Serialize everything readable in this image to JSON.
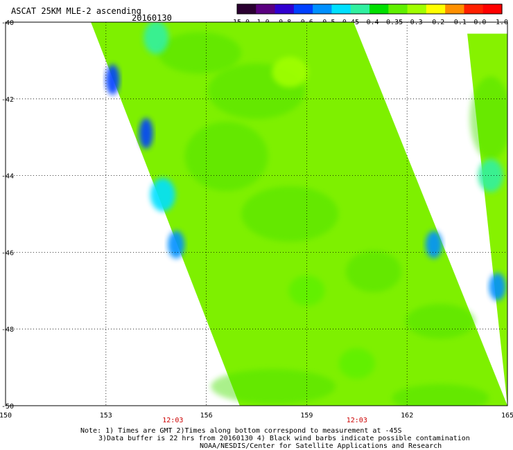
{
  "chart_data": {
    "type": "heatmap",
    "title": "ASCAT 25KM MLE-2 ascending",
    "date": "20160130",
    "colorbar": {
      "labels": [
        "-15.0",
        "-1.0",
        "-0.8",
        "-0.6",
        "-0.5",
        "-0.45",
        "-0.4",
        "-0.35",
        "-0.3",
        "-0.2",
        "-0.1",
        "0.0",
        "1.0"
      ],
      "colors": [
        "#2a0030",
        "#5a0080",
        "#3000d0",
        "#0040ff",
        "#0090ff",
        "#00e0ff",
        "#30f0a0",
        "#00e000",
        "#60f000",
        "#a0ff00",
        "#ffff00",
        "#ff9000",
        "#ff2000",
        "#ff0000"
      ]
    },
    "x_ticks": [
      "150",
      "153",
      "156",
      "159",
      "162",
      "165"
    ],
    "y_ticks": [
      "-40",
      "-42",
      "-44",
      "-46",
      "-48",
      "-50"
    ],
    "xlim": [
      150,
      165
    ],
    "ylim": [
      -50,
      -40
    ],
    "grid": "dotted",
    "time_labels": [
      {
        "lon": 155.0,
        "text": "12:03"
      },
      {
        "lon": 160.5,
        "text": "12:03"
      }
    ],
    "time_label_color": "#cc0000",
    "swaths": [
      {
        "name": "west",
        "west_edge": [
          [
            -40.0,
            152.55
          ],
          [
            -50.0,
            157.0
          ]
        ],
        "east_edge": [
          [
            -40.0,
            160.4
          ],
          [
            -50.0,
            165.0
          ]
        ]
      },
      {
        "name": "east",
        "west_edge": [
          [
            -40.3,
            163.8
          ],
          [
            -50.0,
            165.0
          ]
        ]
      }
    ],
    "features": [
      {
        "lat": -41.5,
        "lon": 153.2,
        "value": -0.8
      },
      {
        "lat": -42.9,
        "lon": 154.2,
        "value": -0.8
      },
      {
        "lat": -44.5,
        "lon": 154.7,
        "value": -0.5
      },
      {
        "lat": -45.8,
        "lon": 155.1,
        "value": -0.6
      },
      {
        "lat": -40.4,
        "lon": 154.5,
        "value": -0.45
      },
      {
        "lat": -46.9,
        "lon": 164.7,
        "value": -0.6
      },
      {
        "lat": -45.8,
        "lon": 162.8,
        "value": -0.6
      },
      {
        "lat": -44.0,
        "lon": 164.5,
        "value": -0.45
      },
      {
        "lat": -47.0,
        "lon": 159.0,
        "value": -0.35
      },
      {
        "lat": -48.9,
        "lon": 160.5,
        "value": -0.35
      },
      {
        "lat": -41.3,
        "lon": 158.5,
        "value": -0.3
      }
    ]
  },
  "notes": [
    "Note: 1) Times are GMT 2)Times along bottom correspond to measurement at -45S",
    "3)Data buffer is 22 hrs from 20160130 4) Black wind barbs indicate possible contamination",
    "NOAA/NESDIS/Center for Satellite Applications and Research"
  ]
}
